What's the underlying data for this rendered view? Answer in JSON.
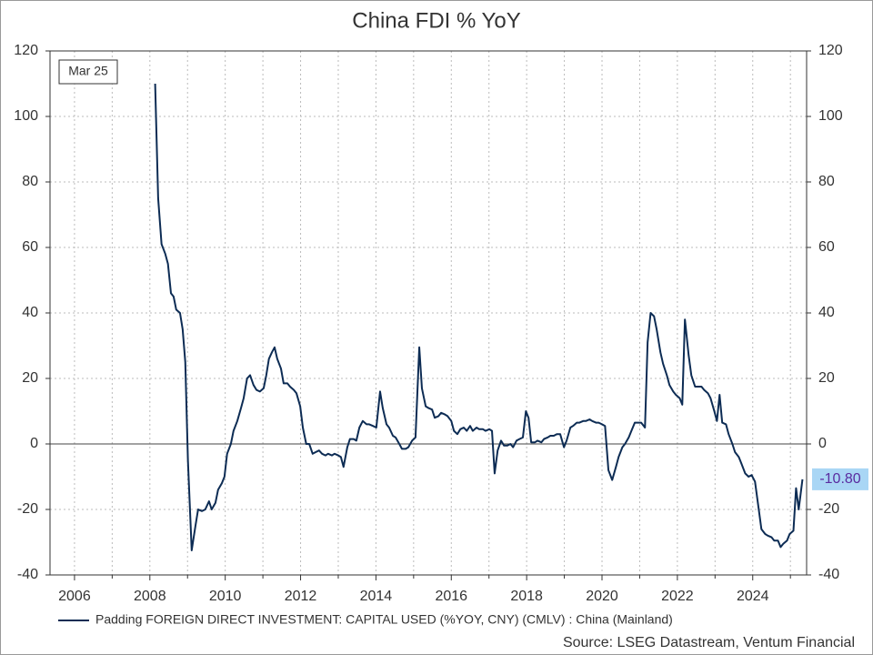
{
  "chart_data": {
    "type": "line",
    "title": "China FDI % YoY",
    "date_label": "Mar 25",
    "source": "Source: LSEG Datastream, Ventum Financial",
    "last_value_label": "-10.80",
    "grid": true,
    "xlim": [
      2005.35,
      2025.43
    ],
    "ylim": [
      -40,
      120
    ],
    "xticks": [
      2006,
      2008,
      2010,
      2012,
      2014,
      2016,
      2018,
      2020,
      2022,
      2024
    ],
    "yticks": [
      -40,
      -20,
      0,
      20,
      40,
      60,
      80,
      100,
      120
    ],
    "x": [
      2008.14,
      2008.22,
      2008.31,
      2008.41,
      2008.48,
      2008.56,
      2008.63,
      2008.7,
      2008.8,
      2008.87,
      2008.94,
      2009.01,
      2009.11,
      2009.21,
      2009.28,
      2009.38,
      2009.47,
      2009.57,
      2009.64,
      2009.74,
      2009.81,
      2009.91,
      2009.98,
      2010.05,
      2010.15,
      2010.22,
      2010.32,
      2010.42,
      2010.49,
      2010.58,
      2010.66,
      2010.75,
      2010.83,
      2010.92,
      2011.02,
      2011.09,
      2011.16,
      2011.24,
      2011.31,
      2011.38,
      2011.48,
      2011.55,
      2011.65,
      2011.72,
      2011.82,
      2011.89,
      2011.99,
      2012.06,
      2012.15,
      2012.23,
      2012.32,
      2012.4,
      2012.49,
      2012.57,
      2012.66,
      2012.73,
      2012.83,
      2012.9,
      2013.0,
      2013.07,
      2013.14,
      2013.24,
      2013.31,
      2013.41,
      2013.48,
      2013.56,
      2013.65,
      2013.75,
      2013.82,
      2013.92,
      2014.01,
      2014.11,
      2014.18,
      2014.28,
      2014.35,
      2014.45,
      2014.52,
      2014.62,
      2014.69,
      2014.79,
      2014.86,
      2014.96,
      2015.05,
      2015.15,
      2015.22,
      2015.32,
      2015.39,
      2015.49,
      2015.56,
      2015.66,
      2015.73,
      2015.83,
      2015.9,
      2016.0,
      2016.07,
      2016.16,
      2016.24,
      2016.33,
      2016.41,
      2016.5,
      2016.57,
      2016.67,
      2016.74,
      2016.84,
      2016.91,
      2017.01,
      2017.08,
      2017.15,
      2017.23,
      2017.32,
      2017.4,
      2017.49,
      2017.57,
      2017.64,
      2017.73,
      2017.81,
      2017.9,
      2017.98,
      2018.05,
      2018.12,
      2018.22,
      2018.29,
      2018.39,
      2018.46,
      2018.56,
      2018.63,
      2018.72,
      2018.8,
      2018.89,
      2018.99,
      2019.06,
      2019.16,
      2019.23,
      2019.33,
      2019.4,
      2019.5,
      2019.57,
      2019.67,
      2019.74,
      2019.84,
      2019.91,
      2020.0,
      2020.08,
      2020.17,
      2020.27,
      2020.37,
      2020.44,
      2020.54,
      2020.61,
      2020.71,
      2020.78,
      2020.87,
      2020.95,
      2021.04,
      2021.14,
      2021.21,
      2021.29,
      2021.38,
      2021.45,
      2021.55,
      2021.62,
      2021.72,
      2021.79,
      2021.89,
      2021.96,
      2022.06,
      2022.13,
      2022.2,
      2022.3,
      2022.37,
      2022.47,
      2022.54,
      2022.64,
      2022.71,
      2022.81,
      2022.88,
      2022.98,
      2023.05,
      2023.12,
      2023.19,
      2023.29,
      2023.36,
      2023.46,
      2023.53,
      2023.63,
      2023.7,
      2023.8,
      2023.89,
      2023.97,
      2024.06,
      2024.16,
      2024.23,
      2024.33,
      2024.4,
      2024.5,
      2024.57,
      2024.67,
      2024.74,
      2024.81,
      2024.91,
      2024.98,
      2025.08,
      2025.15,
      2025.22,
      2025.32
    ],
    "series": [
      {
        "name": "Padding FOREIGN DIRECT INVESTMENT: CAPITAL USED (%YOY, CNY) (CMLV) : China (Mainland)",
        "color": "#0d2c54",
        "values": [
          110,
          75,
          61,
          58,
          55,
          46,
          45,
          41,
          40,
          35,
          25,
          -5,
          -32.5,
          -25,
          -20,
          -20.5,
          -20,
          -17.5,
          -20,
          -18,
          -14,
          -12,
          -10,
          -3,
          0,
          4,
          7,
          11,
          14,
          20,
          21,
          18,
          16.5,
          16,
          17,
          21,
          26,
          28,
          29.5,
          26,
          23,
          18.5,
          18.5,
          17.5,
          16.5,
          15.5,
          11.5,
          5,
          0,
          0,
          -3,
          -2.5,
          -2,
          -3,
          -3.5,
          -3,
          -3.5,
          -3,
          -3.5,
          -4,
          -7,
          -1,
          1.5,
          1.5,
          1,
          5,
          7,
          6,
          6,
          5.5,
          5,
          16,
          11,
          6,
          5,
          2.5,
          2,
          0,
          -1.5,
          -1.5,
          -1,
          1,
          2,
          29.5,
          17,
          11.5,
          11,
          10.5,
          8,
          8.5,
          9.5,
          9,
          8.5,
          7,
          4,
          3,
          4.5,
          5,
          4,
          5.5,
          4,
          5,
          4.5,
          4.5,
          4,
          4.5,
          4,
          -9,
          -2,
          1,
          -0.5,
          -0.5,
          0,
          -1,
          1,
          1.5,
          2,
          10,
          8,
          0.5,
          0.5,
          1,
          0.5,
          1.5,
          2,
          2.5,
          2.5,
          3,
          3,
          -1,
          1,
          5,
          5.5,
          6.5,
          6.5,
          7,
          7,
          7.5,
          7,
          6.5,
          6.5,
          6,
          5.5,
          -8,
          -11,
          -7,
          -4,
          -1,
          0,
          2,
          4,
          6.5,
          6.5,
          6.5,
          5,
          31,
          40,
          39,
          35,
          28,
          24.5,
          21,
          18,
          16,
          15,
          14,
          12,
          38,
          27,
          21,
          17.5,
          17.5,
          17.5,
          16.5,
          15.5,
          14,
          10,
          7,
          15,
          6.5,
          6,
          3,
          0,
          -2.5,
          -4,
          -6,
          -9,
          -10,
          -9.5,
          -11.5,
          -20,
          -26,
          -27.5,
          -28,
          -28.5,
          -29.5,
          -29.5,
          -31.5,
          -30.5,
          -29.5,
          -27.5,
          -26.5,
          -13.5,
          -20,
          -10.8
        ]
      }
    ]
  }
}
